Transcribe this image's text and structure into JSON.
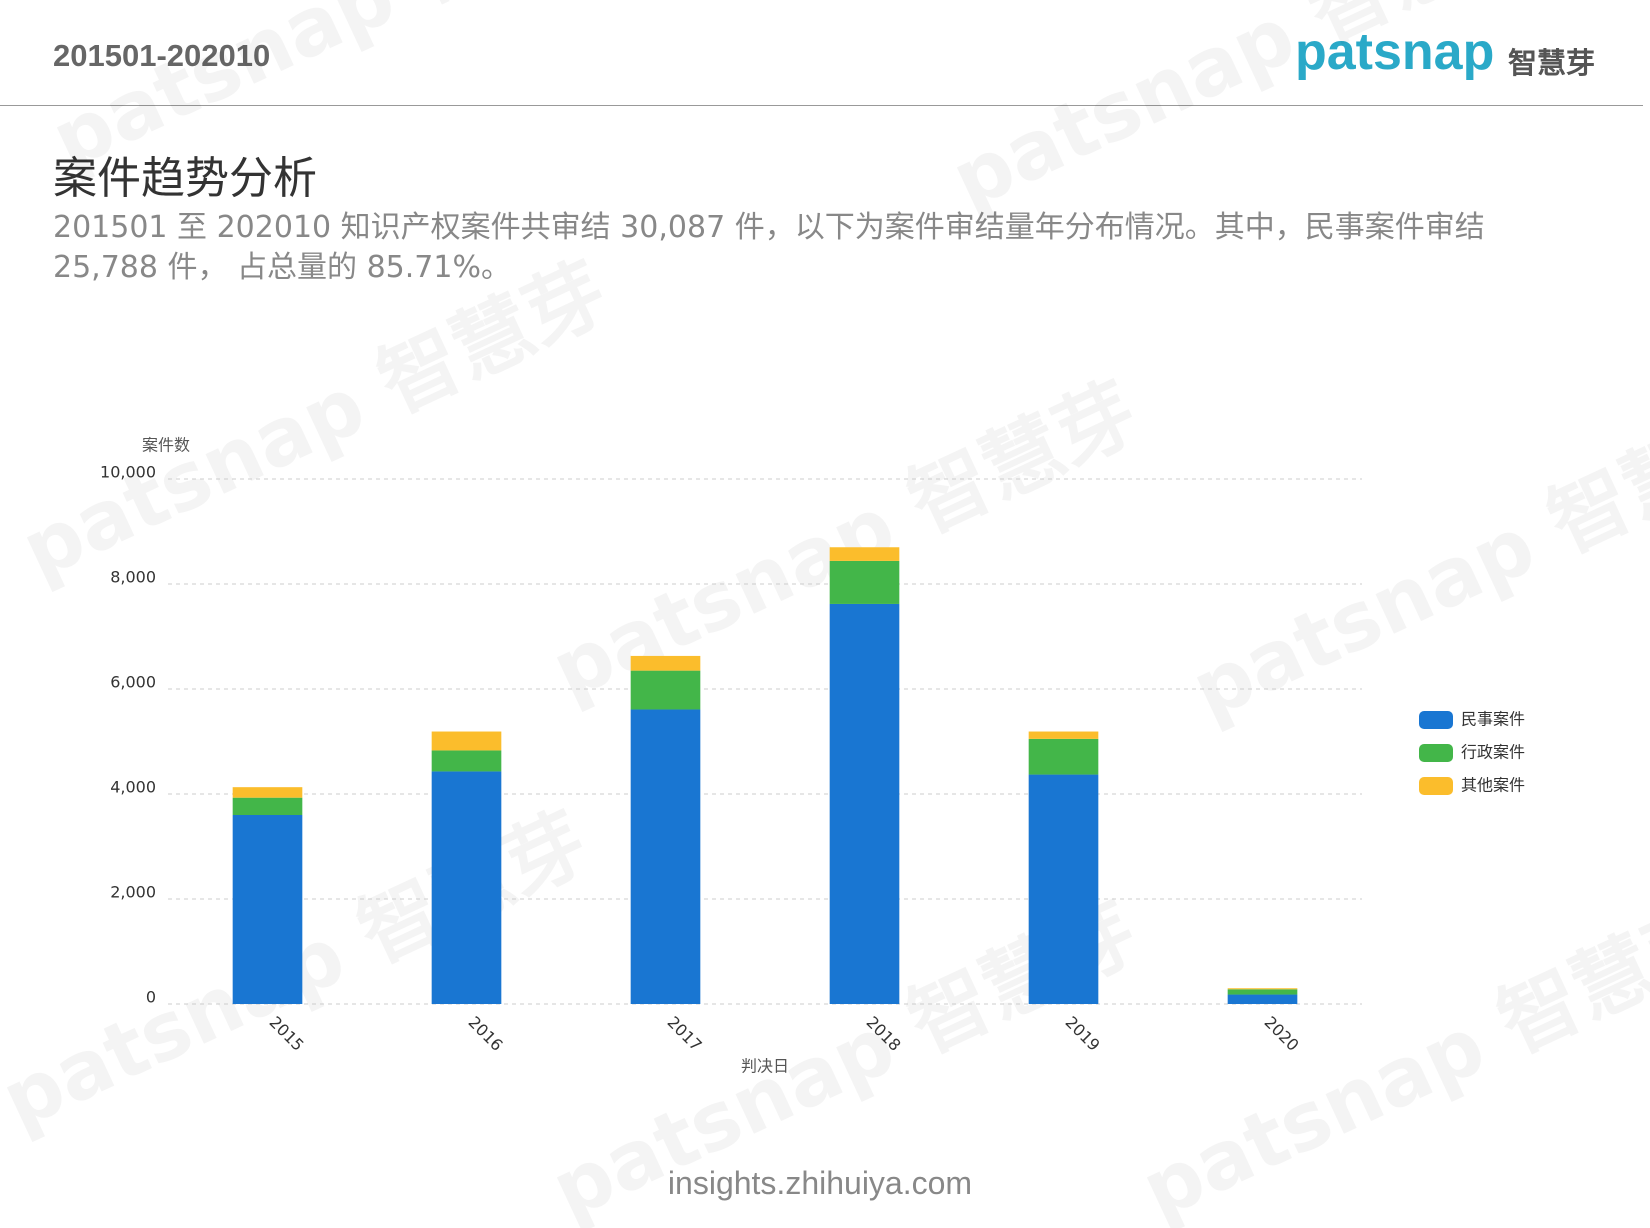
{
  "header": {
    "period": "201501-202010",
    "logo": "patsnap",
    "logo_cn": "智慧芽"
  },
  "section_title": "案件趋势分析",
  "description": "201501 至 202010 知识产权案件共审结 30,087 件，以下为案件审结量年分布情况。其中，民事案件审结 25,788 件， 占总量的 85.71%。",
  "watermark": "patsnap 智慧芽",
  "footer": "insights.zhihuiya.com",
  "chart_data": {
    "type": "stacked_bar",
    "y_label": "案件数",
    "x_label": "判决日",
    "categories": [
      "2015",
      "2016",
      "2017",
      "2018",
      "2019",
      "2020"
    ],
    "series": [
      {
        "name": "民事案件",
        "color": "#1976d2",
        "values": [
          3600,
          4430,
          5610,
          7620,
          4370,
          180
        ]
      },
      {
        "name": "行政案件",
        "color": "#43b649",
        "values": [
          330,
          400,
          740,
          820,
          680,
          100
        ]
      },
      {
        "name": "其他案件",
        "color": "#fbbd2c",
        "values": [
          200,
          360,
          280,
          260,
          140,
          20
        ]
      }
    ],
    "ylim": [
      0,
      10000
    ],
    "yticks": [
      0,
      {
        "value": 2000,
        "label": "2,000"
      },
      {
        "value": 4000,
        "label": "4,000"
      },
      {
        "value": 6000,
        "label": "6,000"
      },
      {
        "value": 8000,
        "label": "8,000"
      },
      {
        "value": 10000,
        "label": "10,000"
      }
    ],
    "grid": true,
    "legend": "right"
  }
}
